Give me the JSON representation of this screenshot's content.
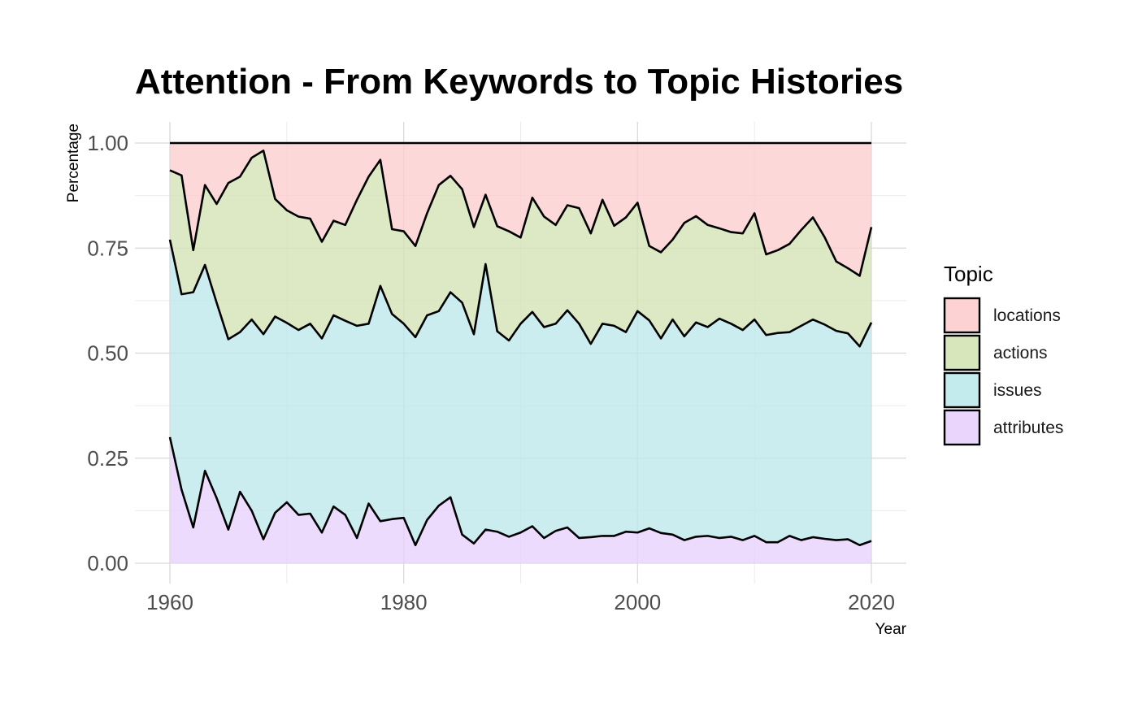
{
  "chart_data": {
    "type": "area",
    "stacking": "fill",
    "title": "Attention - From Keywords to Topic Histories",
    "xlabel": "Year",
    "ylabel": "Percentage",
    "xlim": [
      1960,
      2020
    ],
    "ylim": [
      0,
      1
    ],
    "x_ticks": [
      "1960",
      "1980",
      "2000",
      "2020"
    ],
    "y_ticks": [
      "0.00",
      "0.25",
      "0.50",
      "0.75",
      "1.00"
    ],
    "grid": true,
    "legend": {
      "title": "Topic",
      "position": "right",
      "entries": [
        "locations",
        "actions",
        "issues",
        "attributes"
      ]
    },
    "series_colors": {
      "locations": "#fccdcd",
      "actions": "#d4e3b5",
      "issues": "#bce8eb",
      "attributes": "#e8d1fd"
    },
    "x": [
      1960,
      1961,
      1962,
      1963,
      1964,
      1965,
      1966,
      1967,
      1968,
      1969,
      1970,
      1971,
      1972,
      1973,
      1974,
      1975,
      1976,
      1977,
      1978,
      1979,
      1980,
      1981,
      1982,
      1983,
      1984,
      1985,
      1986,
      1987,
      1988,
      1989,
      1990,
      1991,
      1992,
      1993,
      1994,
      1995,
      1996,
      1997,
      1998,
      1999,
      2000,
      2001,
      2002,
      2003,
      2004,
      2005,
      2006,
      2007,
      2008,
      2009,
      2010,
      2011,
      2012,
      2013,
      2014,
      2015,
      2016,
      2017,
      2018,
      2019,
      2020
    ],
    "series": [
      {
        "name": "attributes",
        "values": [
          0.3,
          0.175,
          0.085,
          0.22,
          0.155,
          0.08,
          0.17,
          0.125,
          0.057,
          0.12,
          0.145,
          0.115,
          0.118,
          0.073,
          0.135,
          0.115,
          0.06,
          0.142,
          0.1,
          0.105,
          0.108,
          0.043,
          0.103,
          0.137,
          0.157,
          0.068,
          0.047,
          0.08,
          0.075,
          0.063,
          0.073,
          0.088,
          0.06,
          0.077,
          0.085,
          0.06,
          0.062,
          0.065,
          0.065,
          0.075,
          0.073,
          0.083,
          0.072,
          0.068,
          0.055,
          0.063,
          0.065,
          0.06,
          0.063,
          0.055,
          0.065,
          0.05,
          0.05,
          0.065,
          0.055,
          0.062,
          0.058,
          0.055,
          0.057,
          0.043,
          0.053
        ]
      },
      {
        "name": "issues",
        "values": [
          0.47,
          0.465,
          0.56,
          0.49,
          0.465,
          0.453,
          0.38,
          0.455,
          0.488,
          0.467,
          0.427,
          0.44,
          0.452,
          0.462,
          0.455,
          0.462,
          0.505,
          0.428,
          0.56,
          0.488,
          0.462,
          0.495,
          0.487,
          0.463,
          0.488,
          0.552,
          0.498,
          0.632,
          0.477,
          0.467,
          0.497,
          0.51,
          0.502,
          0.493,
          0.517,
          0.51,
          0.46,
          0.505,
          0.5,
          0.475,
          0.527,
          0.495,
          0.463,
          0.512,
          0.485,
          0.51,
          0.497,
          0.522,
          0.507,
          0.5,
          0.515,
          0.493,
          0.498,
          0.485,
          0.51,
          0.518,
          0.51,
          0.498,
          0.49,
          0.473,
          0.52
        ]
      },
      {
        "name": "actions",
        "values": [
          0.165,
          0.283,
          0.1,
          0.19,
          0.235,
          0.372,
          0.37,
          0.385,
          0.437,
          0.28,
          0.268,
          0.27,
          0.25,
          0.23,
          0.225,
          0.228,
          0.3,
          0.35,
          0.3,
          0.202,
          0.22,
          0.217,
          0.243,
          0.3,
          0.277,
          0.27,
          0.255,
          0.165,
          0.25,
          0.26,
          0.205,
          0.272,
          0.263,
          0.235,
          0.25,
          0.275,
          0.263,
          0.295,
          0.238,
          0.273,
          0.258,
          0.177,
          0.205,
          0.19,
          0.27,
          0.253,
          0.243,
          0.215,
          0.218,
          0.23,
          0.253,
          0.192,
          0.197,
          0.21,
          0.228,
          0.243,
          0.208,
          0.165,
          0.155,
          0.168,
          0.227
        ]
      },
      {
        "name": "locations",
        "values": [
          0.065,
          0.077,
          0.255,
          0.1,
          0.145,
          0.095,
          0.08,
          0.035,
          0.018,
          0.133,
          0.16,
          0.175,
          0.18,
          0.235,
          0.185,
          0.195,
          0.135,
          0.08,
          0.04,
          0.205,
          0.21,
          0.245,
          0.167,
          0.1,
          0.078,
          0.11,
          0.2,
          0.123,
          0.198,
          0.21,
          0.225,
          0.13,
          0.175,
          0.195,
          0.148,
          0.155,
          0.215,
          0.135,
          0.197,
          0.177,
          0.142,
          0.245,
          0.26,
          0.23,
          0.19,
          0.174,
          0.195,
          0.203,
          0.212,
          0.215,
          0.167,
          0.265,
          0.255,
          0.24,
          0.207,
          0.177,
          0.224,
          0.282,
          0.298,
          0.316,
          0.2
        ]
      }
    ]
  }
}
